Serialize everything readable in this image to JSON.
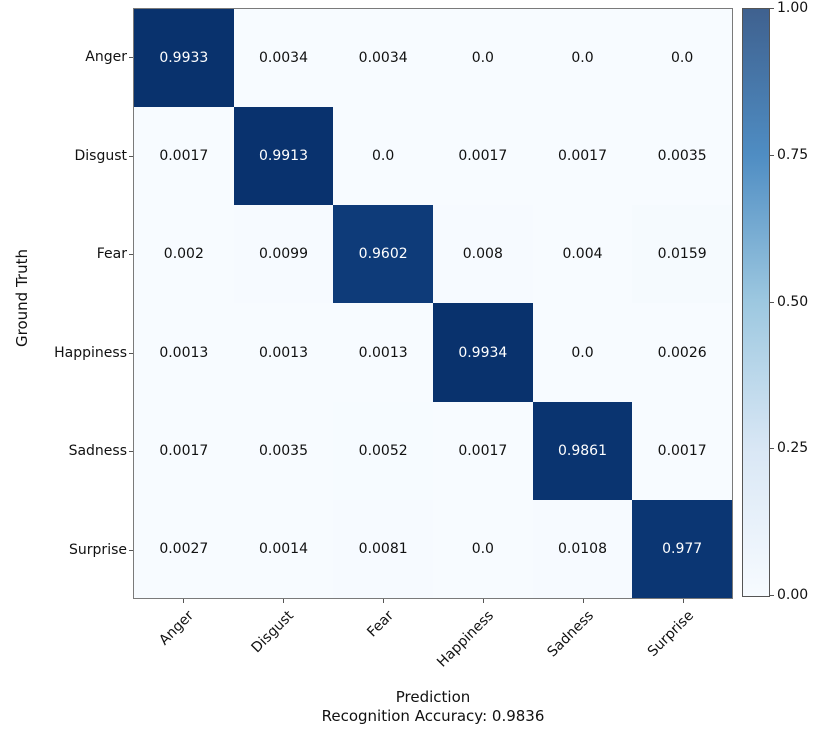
{
  "chart_data": {
    "type": "heatmap",
    "xlabel": "Prediction",
    "ylabel": "Ground Truth",
    "annotation": "Recognition Accuracy: 0.9836",
    "categories": [
      "Anger",
      "Disgust",
      "Fear",
      "Happiness",
      "Sadness",
      "Surprise"
    ],
    "matrix": [
      [
        "0.9933",
        "0.0034",
        "0.0034",
        "0.0",
        "0.0",
        "0.0"
      ],
      [
        "0.0017",
        "0.9913",
        "0.0",
        "0.0017",
        "0.0017",
        "0.0035"
      ],
      [
        "0.002",
        "0.0099",
        "0.9602",
        "0.008",
        "0.004",
        "0.0159"
      ],
      [
        "0.0013",
        "0.0013",
        "0.0013",
        "0.9934",
        "0.0",
        "0.0026"
      ],
      [
        "0.0017",
        "0.0035",
        "0.0052",
        "0.0017",
        "0.9861",
        "0.0017"
      ],
      [
        "0.0027",
        "0.0014",
        "0.0081",
        "0.0",
        "0.0108",
        "0.977"
      ]
    ],
    "value_range": [
      0,
      1
    ],
    "colormap_stops": [
      [
        0.0,
        "#f7fbff"
      ],
      [
        0.25,
        "#d9e7f5"
      ],
      [
        0.5,
        "#9dc8e0"
      ],
      [
        0.75,
        "#4a8ac1"
      ],
      [
        0.95,
        "#0f3e7d"
      ],
      [
        1.0,
        "#08306b"
      ]
    ],
    "colorbar": {
      "ticks": [
        {
          "value": 1.0,
          "label": "1.00"
        },
        {
          "value": 0.75,
          "label": "0.75"
        },
        {
          "value": 0.5,
          "label": "0.50"
        },
        {
          "value": 0.25,
          "label": "0.25"
        },
        {
          "value": 0.0,
          "label": "0.00"
        }
      ],
      "gradient_stops": [
        [
          0.0,
          "#f7fbff"
        ],
        [
          0.25,
          "#d9e7f5"
        ],
        [
          0.5,
          "#9dc8e0"
        ],
        [
          0.75,
          "#4f8dc3"
        ],
        [
          1.0,
          "#3f618f"
        ]
      ],
      "position": "right"
    },
    "text_colors": {
      "light_cell": "#111111",
      "dark_cell": "#ffffff"
    },
    "legend": null,
    "grid": false
  }
}
